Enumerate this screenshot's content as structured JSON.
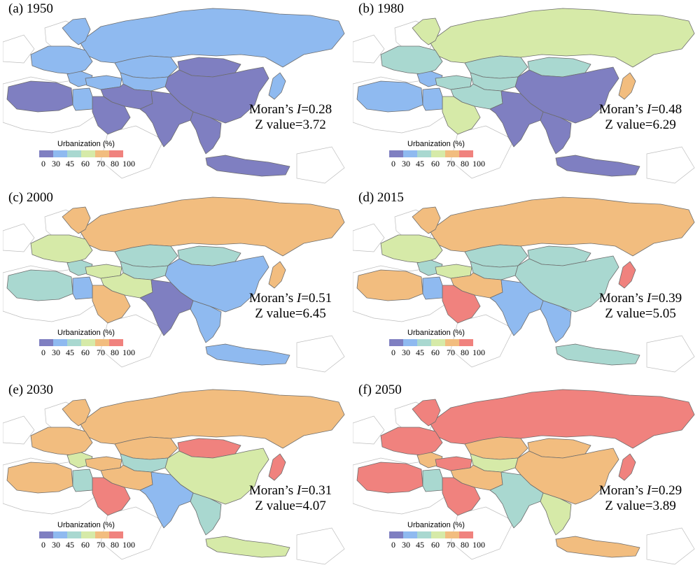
{
  "legend": {
    "title": "Urbanization (%)",
    "ticks": [
      "0",
      "30",
      "45",
      "60",
      "70",
      "80",
      "100"
    ],
    "classes": [
      "#7f7fc1",
      "#8fbaf0",
      "#a9d8d0",
      "#d6eaa8",
      "#f2bd7f",
      "#f0827e"
    ],
    "class_labels": [
      "0-30",
      "30-45",
      "45-60",
      "60-70",
      "70-80",
      "80-100"
    ]
  },
  "colors": {
    "background": "#ffffff",
    "country_border": "#6d6d6d",
    "outside_land": "#ffffff"
  },
  "panels": [
    {
      "label": "(a) 1950",
      "moran_prefix": "Moran’s ",
      "moran_symbol": "I",
      "moran_value": "=0.28",
      "z_text": "Z value=3.72",
      "classes": {
        "russia": 1,
        "scandinavia": 1,
        "europe": 1,
        "balkans": 1,
        "turkey": 1,
        "centralasia": 1,
        "mongolia": 0,
        "china": 0,
        "kazakh": 1,
        "iran": 0,
        "arabia": 0,
        "southasia": 0,
        "seasia": 0,
        "indonesia": 0,
        "japan": 1,
        "northafrica": 0,
        "egypt": 1
      }
    },
    {
      "label": "(b) 1980",
      "moran_prefix": "Moran’s ",
      "moran_symbol": "I",
      "moran_value": "=0.48",
      "z_text": "Z value=6.29",
      "classes": {
        "russia": 3,
        "scandinavia": 3,
        "europe": 2,
        "balkans": 1,
        "turkey": 2,
        "centralasia": 2,
        "mongolia": 2,
        "china": 0,
        "kazakh": 2,
        "iran": 2,
        "arabia": 3,
        "southasia": 0,
        "seasia": 0,
        "indonesia": 0,
        "japan": 4,
        "northafrica": 1,
        "egypt": 1
      }
    },
    {
      "label": "(c) 2000",
      "moran_prefix": "Moran’s ",
      "moran_symbol": "I",
      "moran_value": "=0.51",
      "z_text": "Z value=6.45",
      "classes": {
        "russia": 4,
        "scandinavia": 4,
        "europe": 3,
        "balkans": 2,
        "turkey": 3,
        "centralasia": 2,
        "mongolia": 2,
        "china": 1,
        "kazakh": 2,
        "iran": 3,
        "arabia": 4,
        "southasia": 0,
        "seasia": 1,
        "indonesia": 1,
        "japan": 4,
        "northafrica": 2,
        "egypt": 1
      }
    },
    {
      "label": "(d) 2015",
      "moran_prefix": "Moran’s ",
      "moran_symbol": "I",
      "moran_value": "=0.39",
      "z_text": "Z value=5.05",
      "classes": {
        "russia": 4,
        "scandinavia": 4,
        "europe": 3,
        "balkans": 2,
        "turkey": 3,
        "centralasia": 2,
        "mongolia": 2,
        "china": 2,
        "kazakh": 2,
        "iran": 4,
        "arabia": 5,
        "southasia": 1,
        "seasia": 1,
        "indonesia": 2,
        "japan": 5,
        "northafrica": 4,
        "egypt": 1
      }
    },
    {
      "label": "(e) 2030",
      "moran_prefix": "Moran’s ",
      "moran_symbol": "I",
      "moran_value": "=0.31",
      "z_text": "Z value=4.07",
      "classes": {
        "russia": 4,
        "scandinavia": 4,
        "europe": 4,
        "balkans": 3,
        "turkey": 4,
        "centralasia": 2,
        "mongolia": 5,
        "china": 3,
        "kazakh": 4,
        "iran": 4,
        "arabia": 5,
        "southasia": 1,
        "seasia": 2,
        "indonesia": 3,
        "japan": 5,
        "northafrica": 4,
        "egypt": 2
      }
    },
    {
      "label": "(f) 2050",
      "moran_prefix": "Moran’s ",
      "moran_symbol": "I",
      "moran_value": "=0.29",
      "z_text": "Z value=3.89",
      "classes": {
        "russia": 5,
        "scandinavia": 5,
        "europe": 5,
        "balkans": 4,
        "turkey": 5,
        "centralasia": 3,
        "mongolia": 4,
        "china": 4,
        "kazakh": 4,
        "iran": 4,
        "arabia": 5,
        "southasia": 2,
        "seasia": 3,
        "indonesia": 4,
        "japan": 5,
        "northafrica": 5,
        "egypt": 2
      }
    }
  ]
}
